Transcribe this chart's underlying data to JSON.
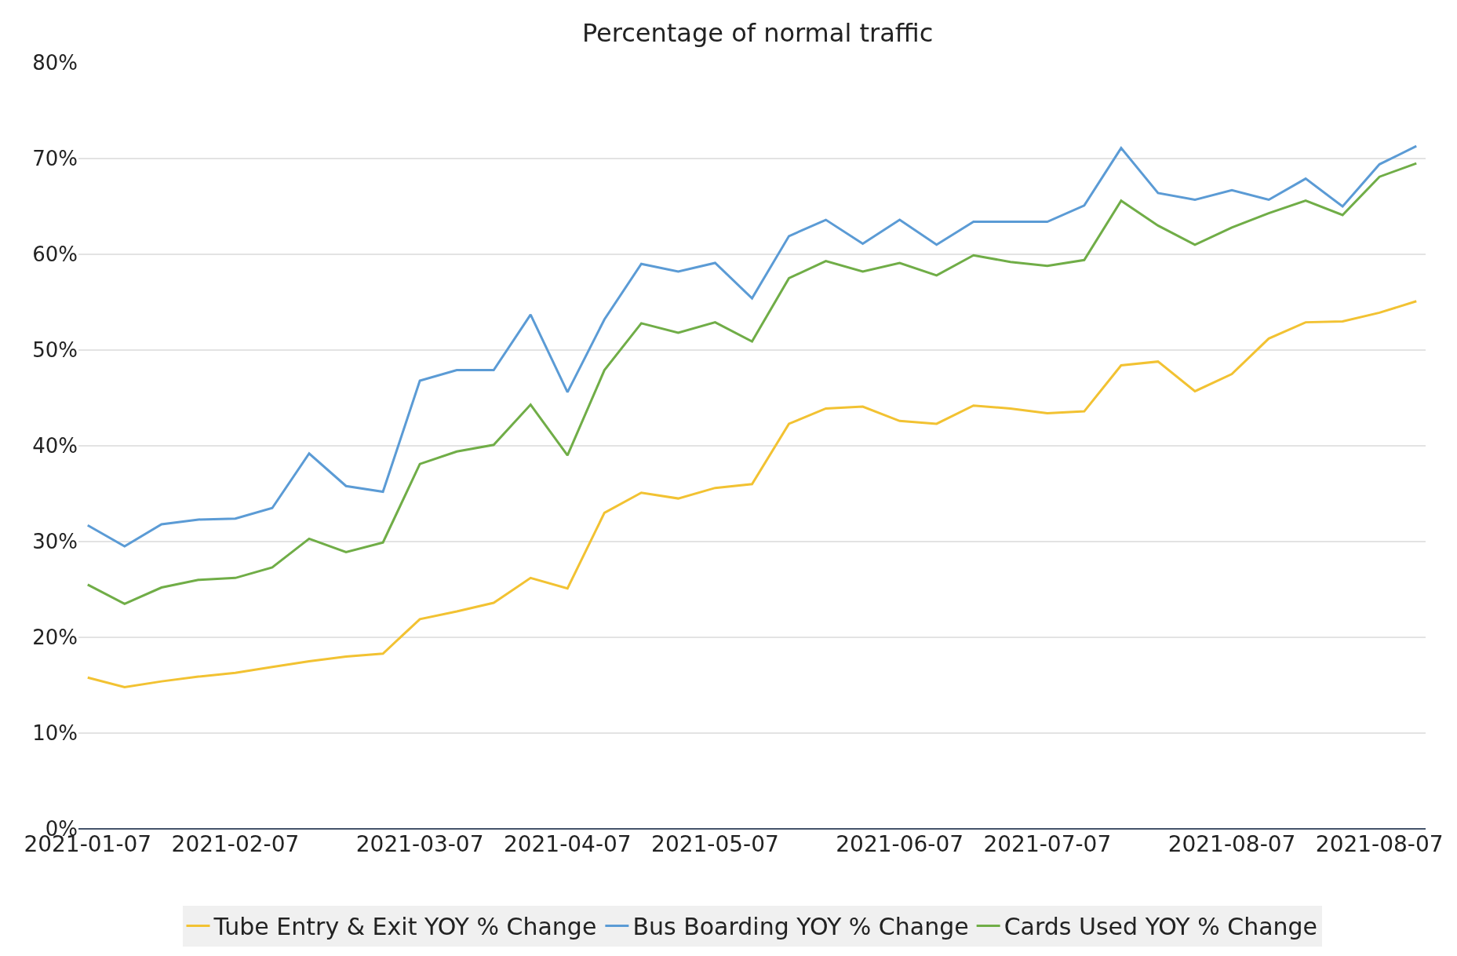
{
  "chart_data": {
    "type": "line",
    "title": "Percentage of normal traffic",
    "categories": [
      "2021-01-07",
      null,
      null,
      null,
      "2021-02-07",
      null,
      null,
      null,
      null,
      "2021-03-07",
      null,
      null,
      null,
      "2021-04-07",
      null,
      null,
      null,
      "2021-05-07",
      null,
      null,
      null,
      null,
      "2021-06-07",
      null,
      null,
      null,
      "2021-07-07",
      null,
      null,
      null,
      null,
      "2021-08-07",
      null,
      null,
      null,
      "2021-08-07",
      null
    ],
    "series": [
      {
        "name": "Tube Entry & Exit YOY % Change",
        "color": "#f2c232",
        "values": [
          15.8,
          14.8,
          15.4,
          15.9,
          16.3,
          16.9,
          17.5,
          18.0,
          18.3,
          21.9,
          22.7,
          23.6,
          26.2,
          25.1,
          33.0,
          35.1,
          34.5,
          35.6,
          36.0,
          42.3,
          43.9,
          44.1,
          42.6,
          42.3,
          44.2,
          43.9,
          43.4,
          43.6,
          48.4,
          48.8,
          45.7,
          47.5,
          51.2,
          52.9,
          53.0,
          53.9,
          55.1
        ]
      },
      {
        "name": "Bus Boarding YOY % Change",
        "color": "#5b9bd5",
        "values": [
          31.7,
          29.5,
          31.8,
          32.3,
          32.4,
          33.5,
          39.2,
          35.8,
          35.2,
          46.8,
          47.9,
          47.9,
          53.7,
          45.6,
          53.2,
          59.0,
          58.2,
          59.1,
          55.4,
          61.9,
          63.6,
          61.1,
          63.6,
          61.0,
          63.4,
          63.4,
          63.4,
          65.1,
          71.1,
          66.4,
          65.7,
          66.7,
          65.7,
          67.9,
          65.0,
          69.4,
          71.3
        ]
      },
      {
        "name": "Cards Used YOY % Change",
        "color": "#70ad47",
        "values": [
          25.5,
          23.5,
          25.2,
          26.0,
          26.2,
          27.3,
          30.3,
          28.9,
          29.9,
          38.1,
          39.4,
          40.1,
          44.3,
          39.0,
          47.9,
          52.8,
          51.8,
          52.9,
          50.9,
          57.5,
          59.3,
          58.2,
          59.1,
          57.8,
          59.9,
          59.2,
          58.8,
          59.4,
          65.6,
          63.0,
          61.0,
          62.8,
          64.3,
          65.6,
          64.1,
          68.1,
          69.5
        ]
      }
    ],
    "ylim": [
      0,
      80
    ],
    "yticks": [
      {
        "value": 0,
        "label": "0%"
      },
      {
        "value": 10,
        "label": "10%"
      },
      {
        "value": 20,
        "label": "20%"
      },
      {
        "value": 30,
        "label": "30%"
      },
      {
        "value": 40,
        "label": "40%"
      },
      {
        "value": 50,
        "label": "50%"
      },
      {
        "value": 60,
        "label": "60%"
      },
      {
        "value": 70,
        "label": "70%"
      },
      {
        "value": 80,
        "label": "80%"
      }
    ],
    "grid": "y",
    "legend": "bottom",
    "marker": "none",
    "line_style": "solid"
  }
}
